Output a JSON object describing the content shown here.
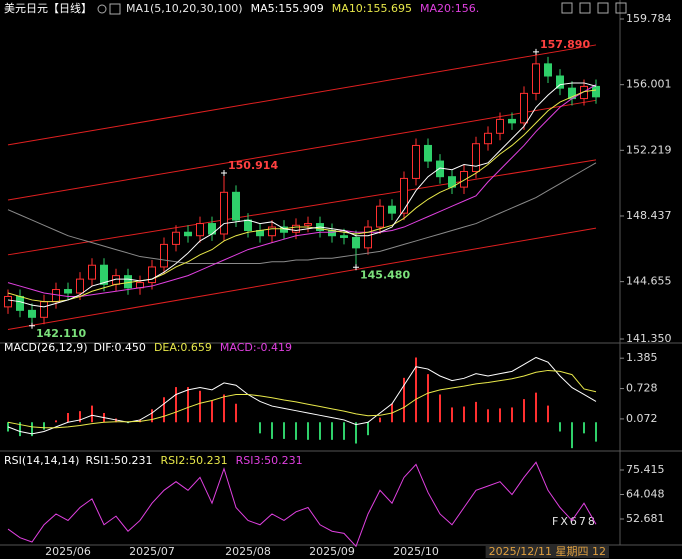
{
  "chart_data": [
    {
      "type": "candlestick",
      "title": "美元日元【日线】",
      "legend": [
        {
          "text": "MA1(5,10,20,30,100)",
          "color": "#e6e6e6"
        },
        {
          "text": "MA5:155.909",
          "color": "#ffffff"
        },
        {
          "text": "MA10:155.695",
          "color": "#e8e84a"
        },
        {
          "text": "MA20:156.",
          "color": "#e040e0"
        }
      ],
      "categories": [
        null,
        null,
        null,
        null,
        null,
        "2025/06",
        null,
        null,
        null,
        null,
        null,
        null,
        "2025/07",
        null,
        null,
        null,
        null,
        null,
        null,
        null,
        "2025/08",
        null,
        null,
        null,
        null,
        null,
        null,
        "2025/09",
        null,
        null,
        null,
        null,
        null,
        null,
        "2025/10",
        null,
        null,
        null,
        null,
        null,
        null,
        null,
        null,
        null,
        null,
        null,
        null,
        null,
        null,
        "2025/12/11 星期四 12"
      ],
      "open": [
        143.2,
        143.8,
        143.0,
        142.6,
        143.5,
        144.2,
        144.0,
        144.8,
        145.6,
        144.5,
        145.0,
        144.3,
        144.6,
        145.5,
        146.8,
        147.5,
        147.3,
        148.0,
        147.4,
        149.8,
        148.2,
        147.6,
        147.3,
        147.8,
        147.5,
        147.9,
        148.0,
        147.6,
        147.3,
        147.2,
        146.6,
        147.8,
        149.0,
        148.6,
        150.6,
        152.5,
        151.6,
        150.7,
        150.1,
        151.0,
        152.6,
        153.2,
        154.0,
        153.8,
        155.5,
        157.2,
        156.5,
        155.8,
        155.2,
        155.9
      ],
      "high": [
        144.2,
        144.2,
        143.4,
        143.9,
        144.6,
        144.6,
        145.2,
        146.0,
        146.0,
        145.4,
        145.4,
        145.0,
        145.9,
        147.2,
        147.9,
        147.9,
        148.4,
        148.4,
        150.914,
        150.2,
        148.6,
        148.0,
        148.2,
        148.2,
        148.3,
        148.4,
        148.4,
        148.0,
        147.7,
        147.6,
        148.2,
        149.4,
        149.4,
        151.0,
        152.9,
        152.9,
        152.0,
        151.1,
        151.4,
        153.0,
        153.6,
        154.4,
        154.4,
        155.9,
        157.89,
        157.6,
        156.9,
        156.2,
        156.3,
        156.3
      ],
      "low": [
        142.8,
        142.6,
        142.11,
        142.2,
        143.1,
        143.6,
        143.6,
        144.4,
        144.1,
        144.1,
        143.9,
        143.9,
        144.2,
        145.1,
        146.4,
        146.9,
        146.9,
        147.0,
        147.0,
        147.8,
        147.2,
        146.9,
        146.9,
        147.1,
        147.1,
        147.5,
        147.2,
        146.9,
        146.8,
        145.48,
        146.2,
        147.4,
        148.2,
        148.2,
        150.2,
        151.2,
        150.3,
        149.7,
        149.7,
        150.6,
        152.2,
        152.8,
        153.4,
        153.4,
        155.1,
        156.1,
        155.4,
        154.8,
        154.8,
        154.9
      ],
      "close": [
        143.8,
        143.0,
        142.6,
        143.5,
        144.2,
        144.0,
        144.8,
        145.6,
        144.5,
        145.0,
        144.3,
        144.6,
        145.5,
        146.8,
        147.5,
        147.3,
        148.0,
        147.4,
        149.8,
        148.2,
        147.6,
        147.3,
        147.8,
        147.5,
        147.9,
        148.0,
        147.6,
        147.3,
        147.2,
        146.6,
        147.8,
        149.0,
        148.6,
        150.6,
        152.5,
        151.6,
        150.7,
        150.1,
        151.0,
        152.6,
        153.2,
        154.0,
        153.8,
        155.5,
        157.2,
        156.5,
        155.8,
        155.2,
        155.9,
        155.3
      ],
      "up_color": "#ff3030",
      "down_color": "#2fd06a",
      "series": [
        {
          "color": "#8a8a8a",
          "values": [
            148.8,
            148.5,
            148.2,
            147.9,
            147.6,
            147.3,
            147.1,
            146.9,
            146.7,
            146.5,
            146.3,
            146.1,
            146.0,
            145.9,
            145.8,
            145.7,
            145.7,
            145.7,
            145.7,
            145.7,
            145.7,
            145.7,
            145.8,
            145.8,
            145.9,
            145.9,
            146.0,
            146.0,
            146.1,
            146.2,
            146.3,
            146.4,
            146.6,
            146.8,
            147.0,
            147.2,
            147.4,
            147.6,
            147.8,
            148.0,
            148.3,
            148.6,
            148.9,
            149.2,
            149.5,
            149.9,
            150.3,
            150.7,
            151.1,
            151.5
          ]
        },
        {
          "color": "#e040e0",
          "values": [
            144.6,
            144.4,
            144.2,
            144.0,
            143.9,
            143.8,
            143.8,
            143.9,
            144.0,
            144.1,
            144.2,
            144.3,
            144.4,
            144.6,
            144.8,
            145.0,
            145.3,
            145.6,
            145.9,
            146.2,
            146.5,
            146.7,
            146.9,
            147.1,
            147.3,
            147.4,
            147.5,
            147.5,
            147.6,
            147.5,
            147.5,
            147.5,
            147.6,
            147.8,
            148.1,
            148.4,
            148.7,
            149.0,
            149.3,
            149.6,
            150.4,
            151.1,
            151.8,
            152.5,
            153.3,
            154.0,
            154.7,
            155.2,
            155.6,
            156.0
          ]
        },
        {
          "color": "#e8e84a",
          "values": [
            144.0,
            143.8,
            143.6,
            143.5,
            143.5,
            143.6,
            143.8,
            144.1,
            144.3,
            144.5,
            144.6,
            144.7,
            144.8,
            145.1,
            145.5,
            145.8,
            146.2,
            146.5,
            147.0,
            147.3,
            147.5,
            147.6,
            147.7,
            147.7,
            147.8,
            147.8,
            147.7,
            147.6,
            147.5,
            147.4,
            147.5,
            147.7,
            147.9,
            148.3,
            148.9,
            149.4,
            149.8,
            150.1,
            150.5,
            150.9,
            151.4,
            152.0,
            152.5,
            153.1,
            153.8,
            154.5,
            155.0,
            155.3,
            155.6,
            155.695
          ]
        },
        {
          "color": "#ffffff",
          "values": [
            143.6,
            143.5,
            143.3,
            143.2,
            143.4,
            143.6,
            143.9,
            144.4,
            144.6,
            144.8,
            144.8,
            144.7,
            144.8,
            145.2,
            145.7,
            146.3,
            147.0,
            147.4,
            148.0,
            148.1,
            148.2,
            148.0,
            148.1,
            147.7,
            147.6,
            147.7,
            147.8,
            147.7,
            147.6,
            147.3,
            147.3,
            147.5,
            147.8,
            148.8,
            149.9,
            150.7,
            151.2,
            151.1,
            151.4,
            151.3,
            151.5,
            152.2,
            152.9,
            153.6,
            154.7,
            155.4,
            156.0,
            156.1,
            156.1,
            155.909
          ]
        }
      ],
      "channels": [
        {
          "start": 152.53,
          "end": 158.29
        },
        {
          "start": 149.36,
          "end": 155.1
        },
        {
          "start": 146.2,
          "end": 151.67
        },
        {
          "start": 141.9,
          "end": 147.74
        }
      ],
      "channel_color": "#e02020",
      "annotations": [
        {
          "label": "157.890",
          "value": 157.89,
          "color": "#ff4040"
        },
        {
          "label": "150.914",
          "value": 150.914,
          "color": "#ff4040"
        },
        {
          "label": "145.480",
          "value": 145.48,
          "color": "#7be07b"
        },
        {
          "label": "142.110",
          "value": 142.11,
          "color": "#7be07b"
        }
      ],
      "ylim": [
        141.35,
        159.784
      ],
      "yticks": [
        159.784,
        156.001,
        152.219,
        148.437,
        144.655,
        {
          "value": 141.35,
          "label": "141.350"
        }
      ],
      "watermark": "FX678"
    },
    {
      "type": "macd",
      "title": "MACD(26,12,9)",
      "legend": [
        {
          "text": "DIF:0.450",
          "color": "#ffffff"
        },
        {
          "text": "DEA:0.659",
          "color": "#e8e84a"
        },
        {
          "text": "MACD:-0.419",
          "color": "#e040e0"
        }
      ],
      "bars": [
        -0.2,
        -0.3,
        -0.3,
        -0.16,
        0.04,
        0.2,
        0.24,
        0.36,
        0.2,
        0.08,
        -0.02,
        0.06,
        0.28,
        0.54,
        0.76,
        0.76,
        0.68,
        0.46,
        0.6,
        0.4,
        0.0,
        -0.24,
        -0.36,
        -0.36,
        -0.38,
        -0.38,
        -0.38,
        -0.38,
        -0.38,
        -0.46,
        -0.28,
        0.1,
        0.4,
        0.96,
        1.4,
        1.04,
        0.6,
        0.32,
        0.34,
        0.44,
        0.28,
        0.3,
        0.32,
        0.5,
        0.64,
        0.36,
        -0.2,
        -0.56,
        -0.24,
        -0.419
      ],
      "up_color": "#ff3030",
      "down_color": "#2fd06a",
      "series": [
        {
          "color": "#ffffff",
          "values": [
            -0.1,
            -0.2,
            -0.25,
            -0.2,
            -0.1,
            0.0,
            0.05,
            0.15,
            0.1,
            0.05,
            0.0,
            0.05,
            0.2,
            0.4,
            0.6,
            0.7,
            0.75,
            0.7,
            0.85,
            0.8,
            0.6,
            0.45,
            0.35,
            0.3,
            0.25,
            0.2,
            0.15,
            0.1,
            0.05,
            -0.05,
            0.0,
            0.2,
            0.4,
            0.8,
            1.2,
            1.15,
            1.0,
            0.9,
            0.95,
            1.05,
            1.0,
            1.05,
            1.1,
            1.25,
            1.4,
            1.3,
            1.0,
            0.75,
            0.6,
            0.45
          ]
        },
        {
          "color": "#e8e84a",
          "values": [
            0.0,
            -0.05,
            -0.1,
            -0.12,
            -0.12,
            -0.1,
            -0.07,
            -0.03,
            0.0,
            0.01,
            0.01,
            0.02,
            0.06,
            0.13,
            0.22,
            0.32,
            0.41,
            0.47,
            0.55,
            0.6,
            0.6,
            0.57,
            0.53,
            0.48,
            0.44,
            0.39,
            0.34,
            0.29,
            0.24,
            0.18,
            0.14,
            0.15,
            0.2,
            0.32,
            0.5,
            0.63,
            0.7,
            0.74,
            0.78,
            0.83,
            0.86,
            0.9,
            0.94,
            1.0,
            1.08,
            1.12,
            1.1,
            1.03,
            0.72,
            0.659
          ]
        }
      ],
      "ylim": [
        -0.6,
        1.67
      ],
      "yticks": [
        1.385,
        0.728,
        0.072
      ]
    },
    {
      "type": "line",
      "title": "RSI(14,14,14)",
      "legend": [
        {
          "text": "RSI1:50.231",
          "color": "#ffffff"
        },
        {
          "text": "RSI2:50.231",
          "color": "#e8e84a"
        },
        {
          "text": "RSI3:50.231",
          "color": "#e040e0"
        }
      ],
      "series": [
        {
          "color": "#e040e0",
          "values": [
            48,
            44,
            42,
            50,
            55,
            52,
            58,
            62,
            50,
            54,
            47,
            52,
            60,
            66,
            70,
            66,
            72,
            60,
            76,
            58,
            52,
            50,
            55,
            52,
            56,
            58,
            50,
            47,
            46,
            40,
            55,
            66,
            60,
            72,
            78,
            65,
            55,
            50,
            58,
            66,
            68,
            70,
            64,
            72,
            79,
            66,
            58,
            52,
            60,
            50.231
          ]
        }
      ],
      "ylim": [
        39.22,
        82.37
      ],
      "yticks": [
        75.415,
        64.048,
        52.681
      ]
    }
  ]
}
